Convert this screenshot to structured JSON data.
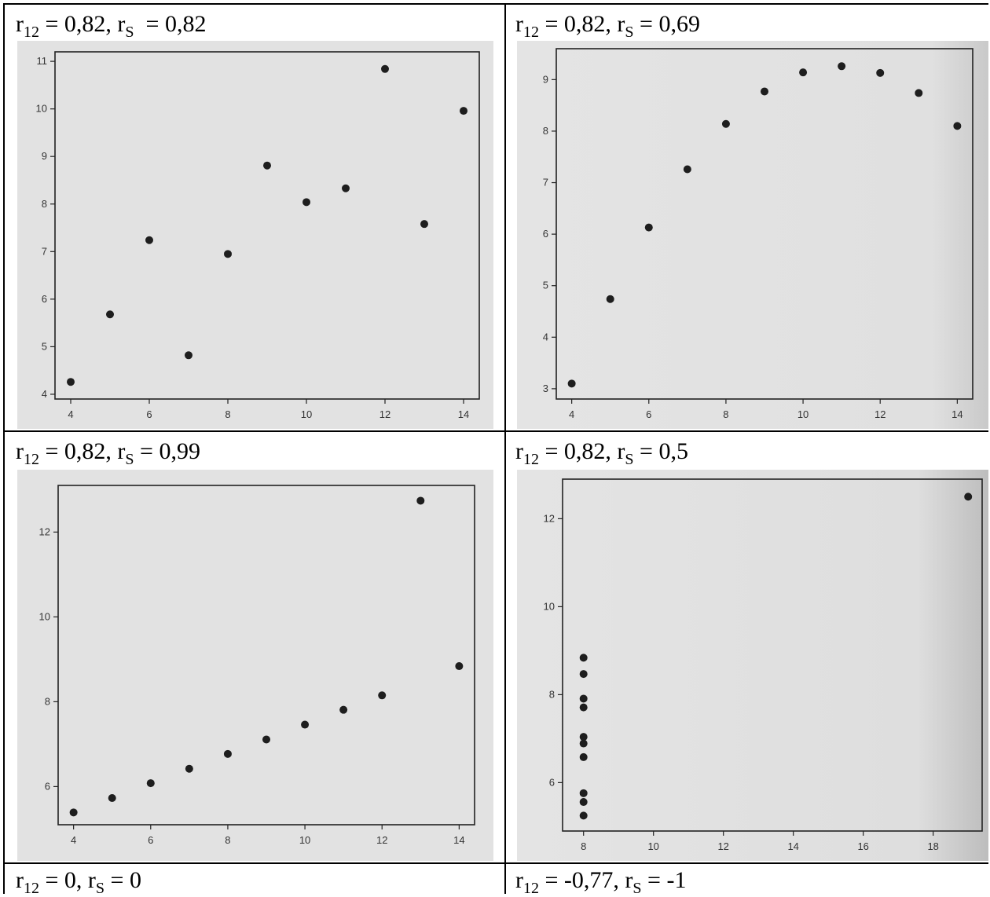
{
  "captions": [
    {
      "r12": "0,82",
      "rs": "0,82"
    },
    {
      "r12": "0,82",
      "rs": "0,69"
    },
    {
      "r12": "0,82",
      "rs": "0,99"
    },
    {
      "r12": "0,82",
      "rs": "0,5"
    },
    {
      "r12": "0",
      "rs": "0"
    },
    {
      "r12": "-0,77",
      "rs": "-1"
    }
  ],
  "chart_data": [
    {
      "type": "scatter",
      "x": [
        4,
        5,
        6,
        7,
        8,
        9,
        10,
        11,
        12,
        13,
        14
      ],
      "y": [
        4.26,
        5.68,
        7.24,
        4.82,
        6.95,
        8.81,
        8.04,
        8.33,
        10.84,
        7.58,
        9.96
      ],
      "xlim": [
        3.6,
        14.4
      ],
      "ylim": [
        3.9,
        11.2
      ],
      "xticks": [
        4,
        6,
        8,
        10,
        12,
        14
      ],
      "yticks": [
        4,
        5,
        6,
        7,
        8,
        9,
        10,
        11
      ]
    },
    {
      "type": "scatter",
      "x": [
        4,
        5,
        6,
        7,
        8,
        9,
        10,
        11,
        12,
        13,
        14
      ],
      "y": [
        3.1,
        4.74,
        6.13,
        7.26,
        8.14,
        8.77,
        9.14,
        9.26,
        9.13,
        8.74,
        8.1
      ],
      "xlim": [
        3.6,
        14.4
      ],
      "ylim": [
        2.8,
        9.6
      ],
      "xticks": [
        4,
        6,
        8,
        10,
        12,
        14
      ],
      "yticks": [
        3,
        4,
        5,
        6,
        7,
        8,
        9
      ]
    },
    {
      "type": "scatter",
      "x": [
        4,
        5,
        6,
        7,
        8,
        9,
        10,
        11,
        12,
        13,
        14
      ],
      "y": [
        5.39,
        5.73,
        6.08,
        6.42,
        6.77,
        7.11,
        7.46,
        7.81,
        8.15,
        12.74,
        8.84
      ],
      "xlim": [
        3.6,
        14.4
      ],
      "ylim": [
        5.1,
        13.1
      ],
      "xticks": [
        4,
        6,
        8,
        10,
        12,
        14
      ],
      "yticks": [
        6,
        8,
        10,
        12
      ]
    },
    {
      "type": "scatter",
      "x": [
        8,
        8,
        8,
        8,
        8,
        8,
        8,
        8,
        8,
        8,
        19
      ],
      "y": [
        6.58,
        5.76,
        7.71,
        8.84,
        8.47,
        7.04,
        5.25,
        5.56,
        7.91,
        6.89,
        12.5
      ],
      "xlim": [
        7.4,
        19.4
      ],
      "ylim": [
        4.9,
        12.9
      ],
      "xticks": [
        8,
        10,
        12,
        14,
        16,
        18
      ],
      "yticks": [
        6,
        8,
        10,
        12
      ]
    }
  ]
}
